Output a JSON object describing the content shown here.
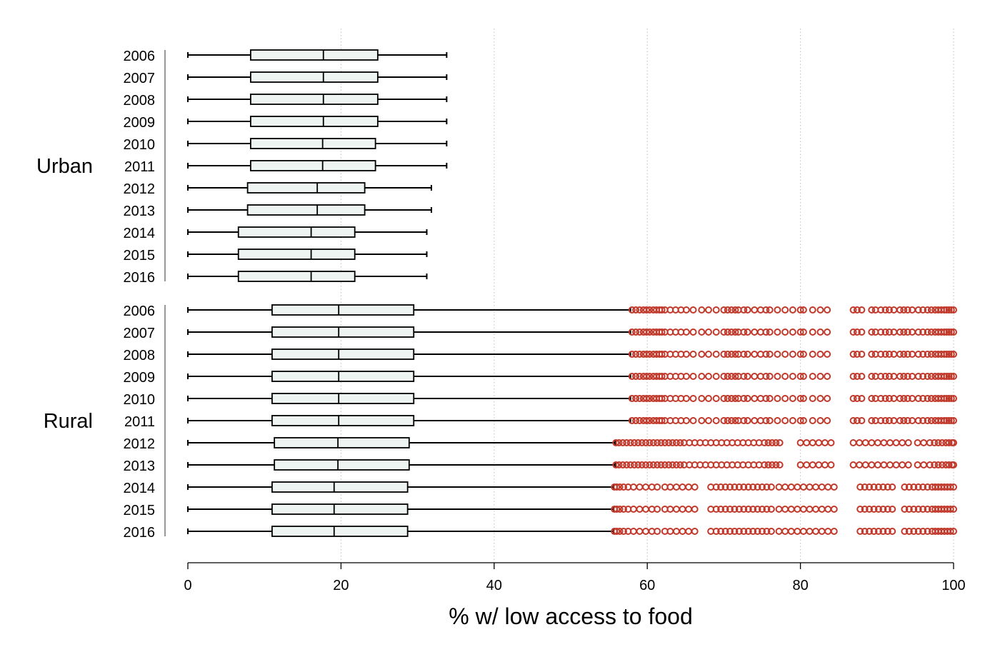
{
  "chart_data": {
    "type": "boxplot",
    "orientation": "horizontal",
    "xlabel": "% w/ low access to food",
    "xlim": [
      0,
      100
    ],
    "x_ticks": [
      "0",
      "20",
      "40",
      "60",
      "80",
      "100"
    ],
    "grid": "vertical dotted lines at x ticks",
    "colors": {
      "box_fill": "#eef4f2",
      "box_stroke": "#000000",
      "outlier": "#c0392b",
      "grid": "#c8c8c8"
    },
    "groups": [
      {
        "name": "Urban",
        "rows": [
          {
            "label": "2006",
            "whisker_low": 0,
            "q1": 8.2,
            "median": 17.7,
            "q3": 24.8,
            "whisker_high": 33.8
          },
          {
            "label": "2007",
            "whisker_low": 0,
            "q1": 8.2,
            "median": 17.7,
            "q3": 24.8,
            "whisker_high": 33.8
          },
          {
            "label": "2008",
            "whisker_low": 0,
            "q1": 8.2,
            "median": 17.7,
            "q3": 24.8,
            "whisker_high": 33.8
          },
          {
            "label": "2009",
            "whisker_low": 0,
            "q1": 8.2,
            "median": 17.7,
            "q3": 24.8,
            "whisker_high": 33.8
          },
          {
            "label": "2010",
            "whisker_low": 0,
            "q1": 8.2,
            "median": 17.6,
            "q3": 24.5,
            "whisker_high": 33.8
          },
          {
            "label": "2011",
            "whisker_low": 0,
            "q1": 8.2,
            "median": 17.6,
            "q3": 24.5,
            "whisker_high": 33.8
          },
          {
            "label": "2012",
            "whisker_low": 0,
            "q1": 7.8,
            "median": 16.9,
            "q3": 23.1,
            "whisker_high": 31.8
          },
          {
            "label": "2013",
            "whisker_low": 0,
            "q1": 7.8,
            "median": 16.9,
            "q3": 23.1,
            "whisker_high": 31.8
          },
          {
            "label": "2014",
            "whisker_low": 0,
            "q1": 6.6,
            "median": 16.1,
            "q3": 21.8,
            "whisker_high": 31.2
          },
          {
            "label": "2015",
            "whisker_low": 0,
            "q1": 6.6,
            "median": 16.1,
            "q3": 21.8,
            "whisker_high": 31.2
          },
          {
            "label": "2016",
            "whisker_low": 0,
            "q1": 6.6,
            "median": 16.1,
            "q3": 21.8,
            "whisker_high": 31.2
          }
        ]
      },
      {
        "name": "Rural",
        "rows": [
          {
            "label": "2006",
            "whisker_low": 0,
            "q1": 11.0,
            "median": 19.7,
            "q3": 29.5,
            "whisker_high": 57.8
          },
          {
            "label": "2007",
            "whisker_low": 0,
            "q1": 11.0,
            "median": 19.7,
            "q3": 29.5,
            "whisker_high": 57.8
          },
          {
            "label": "2008",
            "whisker_low": 0,
            "q1": 11.0,
            "median": 19.7,
            "q3": 29.5,
            "whisker_high": 57.8
          },
          {
            "label": "2009",
            "whisker_low": 0,
            "q1": 11.0,
            "median": 19.7,
            "q3": 29.5,
            "whisker_high": 57.8
          },
          {
            "label": "2010",
            "whisker_low": 0,
            "q1": 11.0,
            "median": 19.7,
            "q3": 29.5,
            "whisker_high": 57.8
          },
          {
            "label": "2011",
            "whisker_low": 0,
            "q1": 11.0,
            "median": 19.7,
            "q3": 29.5,
            "whisker_high": 57.8
          },
          {
            "label": "2012",
            "whisker_low": 0,
            "q1": 11.3,
            "median": 19.6,
            "q3": 28.9,
            "whisker_high": 55.8
          },
          {
            "label": "2013",
            "whisker_low": 0,
            "q1": 11.3,
            "median": 19.6,
            "q3": 28.9,
            "whisker_high": 55.8
          },
          {
            "label": "2014",
            "whisker_low": 0,
            "q1": 11.0,
            "median": 19.1,
            "q3": 28.7,
            "whisker_high": 55.6
          },
          {
            "label": "2015",
            "whisker_low": 0,
            "q1": 11.0,
            "median": 19.1,
            "q3": 28.7,
            "whisker_high": 55.6
          },
          {
            "label": "2016",
            "whisker_low": 0,
            "q1": 11.0,
            "median": 19.1,
            "q3": 28.7,
            "whisker_high": 55.6
          }
        ]
      }
    ],
    "outliers": {
      "set_a": [
        58.0,
        58.5,
        59.0,
        59.5,
        59.9,
        60.3,
        60.8,
        61.2,
        61.6,
        61.9,
        62.3,
        63.0,
        63.7,
        64.4,
        65.1,
        66.0,
        67.1,
        68.0,
        69.0,
        70.0,
        70.5,
        71.0,
        71.5,
        71.9,
        72.6,
        73.1,
        74.0,
        74.8,
        75.5,
        76.0,
        77.0,
        78.0,
        79.0,
        80.0,
        80.4,
        81.6,
        82.6,
        83.5,
        86.9,
        87.4,
        88.0,
        89.3,
        89.8,
        90.5,
        91.1,
        91.6,
        92.2,
        93.0,
        93.5,
        94.0,
        94.6,
        95.4,
        96.0,
        96.6,
        97.1,
        97.6,
        98.0,
        98.4,
        98.8,
        99.1,
        99.4,
        99.7,
        100.0
      ],
      "set_b": [
        55.9,
        56.3,
        56.8,
        57.3,
        57.8,
        58.3,
        58.8,
        59.3,
        59.8,
        60.3,
        60.8,
        61.3,
        61.8,
        62.3,
        62.8,
        63.3,
        63.8,
        64.3,
        64.8,
        65.5,
        66.2,
        66.9,
        67.6,
        68.3,
        69.0,
        69.7,
        70.4,
        71.1,
        71.8,
        72.5,
        73.2,
        73.9,
        74.6,
        75.3,
        75.8,
        76.3,
        76.8,
        77.3,
        80.0,
        80.8,
        81.6,
        82.4,
        83.2,
        84.0,
        86.9,
        87.7,
        88.5,
        89.3,
        90.1,
        90.9,
        91.7,
        92.5,
        93.3,
        94.1,
        95.3,
        96.1,
        96.9,
        97.5,
        98.0,
        98.5,
        99.0,
        99.4,
        99.8,
        100.0
      ],
      "set_c": [
        55.7,
        56.0,
        56.4,
        56.9,
        57.5,
        58.2,
        59.0,
        59.8,
        60.6,
        61.3,
        62.3,
        63.0,
        63.8,
        64.6,
        65.4,
        66.2,
        68.3,
        69.0,
        69.6,
        70.2,
        70.8,
        71.4,
        72.0,
        72.6,
        73.2,
        73.8,
        74.4,
        75.0,
        75.6,
        76.2,
        77.2,
        78.0,
        78.8,
        79.6,
        80.4,
        81.2,
        82.0,
        82.8,
        83.6,
        84.4,
        87.8,
        88.4,
        89.0,
        89.6,
        90.2,
        90.8,
        91.4,
        92.0,
        93.6,
        94.2,
        94.8,
        95.4,
        96.0,
        96.6,
        97.2,
        97.6,
        98.0,
        98.4,
        98.8,
        99.2,
        99.6,
        100.0
      ],
      "rows": {
        "Rural-2006": "set_a",
        "Rural-2007": "set_a",
        "Rural-2008": "set_a",
        "Rural-2009": "set_a",
        "Rural-2010": "set_a",
        "Rural-2011": "set_a",
        "Rural-2012": "set_b",
        "Rural-2013": "set_b",
        "Rural-2014": "set_c",
        "Rural-2015": "set_c",
        "Rural-2016": "set_c"
      }
    }
  }
}
